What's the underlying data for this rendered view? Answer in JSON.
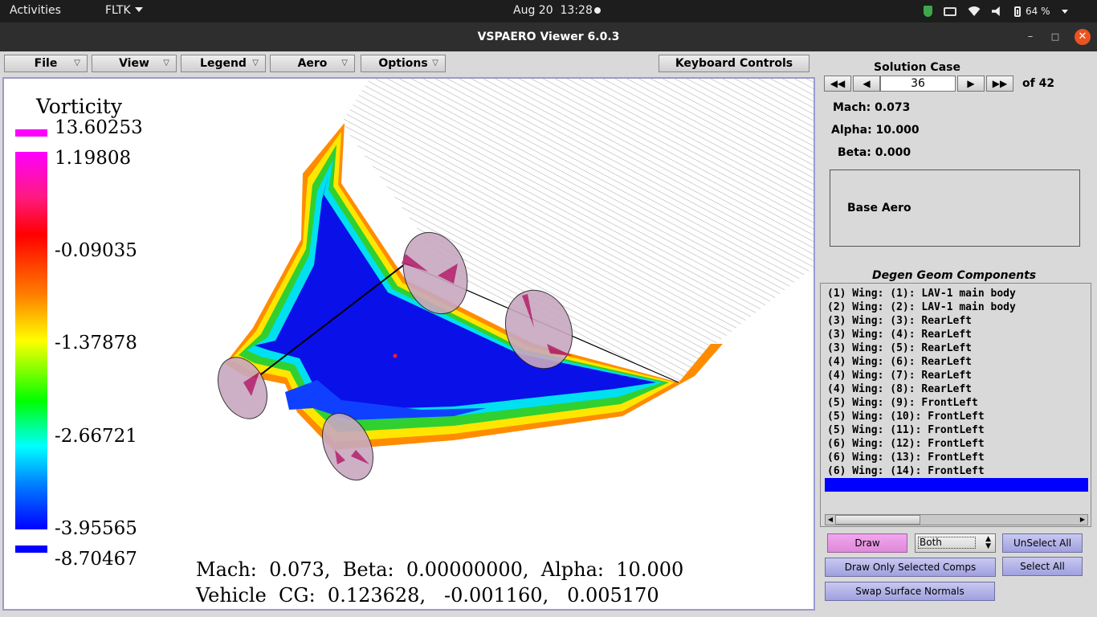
{
  "system": {
    "activities": "Activities",
    "app_menu": "FLTK",
    "clock_date": "Aug 20",
    "clock_time": "13:28",
    "battery": "64 %",
    "tray_icons": [
      "shield-icon",
      "card-icon",
      "wifi-icon",
      "volume-icon",
      "battery-icon"
    ]
  },
  "window": {
    "title": "VSPAERO Viewer 6.0.3",
    "controls": [
      "minimize-icon",
      "maximize-icon",
      "close-icon"
    ]
  },
  "menu": {
    "file": "File",
    "view": "View",
    "legend": "Legend",
    "aero": "Aero",
    "options": "Options",
    "arrow": "▽",
    "keyboard": "Keyboard Controls"
  },
  "legend": {
    "title": "Vorticity",
    "labels": [
      "13.60253",
      "1.19808",
      "-0.09035",
      "-1.37878",
      "-2.66721",
      "-3.95565",
      "-8.70467"
    ],
    "colors": [
      "#ff00ff",
      "#ff0000",
      "#ffff00",
      "#00ff00",
      "#00ffff",
      "#0000ff"
    ]
  },
  "info": {
    "line1": "Mach:  0.073,  Beta:  0.00000000,  Alpha:  10.000",
    "line2": "Vehicle  CG:  0.123628,   -0.001160,   0.005170"
  },
  "solution": {
    "title": "Solution Case",
    "first": "◀◀",
    "prev": "◀",
    "case": "36",
    "next": "▶",
    "last": "▶▶",
    "of": "of 42",
    "mach": "Mach: 0.073",
    "alpha": "Alpha: 10.000",
    "beta": "Beta: 0.000",
    "group": "Base Aero"
  },
  "components": {
    "title": "Degen Geom Components",
    "items": [
      "(1) Wing: (1): LAV-1 main body",
      "(2) Wing: (2): LAV-1 main body",
      "(3) Wing: (3): RearLeft",
      "(3) Wing: (4): RearLeft",
      "(3) Wing: (5): RearLeft",
      "(4) Wing: (6): RearLeft",
      "(4) Wing: (7): RearLeft",
      "(4) Wing: (8): RearLeft",
      "(5) Wing: (9): FrontLeft",
      "(5) Wing: (10): FrontLeft",
      "(5) Wing: (11): FrontLeft",
      "(6) Wing: (12): FrontLeft",
      "(6) Wing: (13): FrontLeft",
      "(6) Wing: (14): FrontLeft"
    ],
    "selected_color": "#0000ff"
  },
  "buttons": {
    "draw": "Draw",
    "draw_mode": "Both",
    "unselect_all": "UnSelect All",
    "draw_only_selected": "Draw Only Selected Comps",
    "select_all": "Select All",
    "swap_normals": "Swap Surface Normals"
  }
}
